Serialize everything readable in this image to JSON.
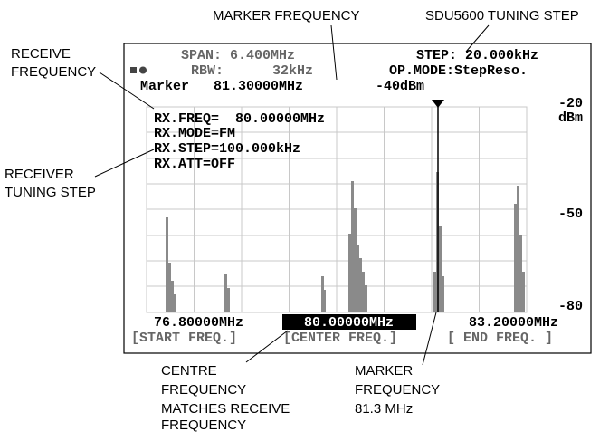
{
  "annotations": {
    "marker_frequency": "MARKER FREQUENCY",
    "tuning_step": "SDU5600 TUNING STEP",
    "receive_frequency": [
      "RECEIVE",
      "FREQUENCY"
    ],
    "receiver_tuning_step": [
      "RECEIVER",
      "TUNING STEP"
    ],
    "centre_frequency": [
      "CENTRE",
      "FREQUENCY",
      "MATCHES RECEIVE",
      "FREQUENCY"
    ],
    "marker_frequency_value": [
      "MARKER",
      "FREQUENCY",
      "81.3 MHz"
    ]
  },
  "screen": {
    "span": "SPAN: 6.400MHz",
    "step": "STEP: 20.000kHz",
    "rbw": "RBW:      32kHz",
    "op_mode": "OP.MODE:StepReso.",
    "marker": "Marker   81.30000MHz",
    "marker_level": "-40dBm",
    "level_top": "-20",
    "level_unit": "dBm",
    "level_mid": "-50",
    "level_bottom": "-80",
    "rx": [
      "RX.FREQ=  80.00000MHz",
      "RX.MODE=FM",
      "RX.STEP=100.000kHz",
      "RX.ATT=OFF"
    ],
    "start_freq": "76.80000MHz",
    "center_freq": "80.00000MHz",
    "end_freq": "83.20000MHz",
    "start_label": "[START FREQ.]",
    "center_label": "[CENTER FREQ.]",
    "end_label": "[ END FREQ. ]"
  }
}
